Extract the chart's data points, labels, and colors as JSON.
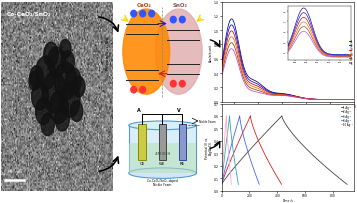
{
  "tem_label": "Co-CeO₂/SnO₂",
  "scale_bar_text": "20 nm",
  "abs_colors": [
    "#000077",
    "#0000ff",
    "#cc0000",
    "#ff6600",
    "#884400",
    "#cc44cc"
  ],
  "abs_legend": [
    "1",
    "2",
    "3",
    "4",
    "5",
    "6"
  ],
  "gcd_colors": [
    "#444444",
    "#dd2222",
    "#4466ff",
    "#33aaaa",
    "#ffaacc"
  ],
  "gcd_legend": [
    "1 Ag⁻¹",
    "2 Ag⁻¹",
    "3 Ag⁻¹",
    "8 Ag⁻¹",
    "10 Ag⁻¹"
  ],
  "gcd_tmax": [
    900,
    430,
    270,
    120,
    70
  ],
  "bg": "#ffffff",
  "cell_electrolyte": "4M KOH",
  "nickel_foam": "Nickle Foam",
  "foam_label": "Co-CeO₂/SnO₂ doped\nNickle Foam"
}
